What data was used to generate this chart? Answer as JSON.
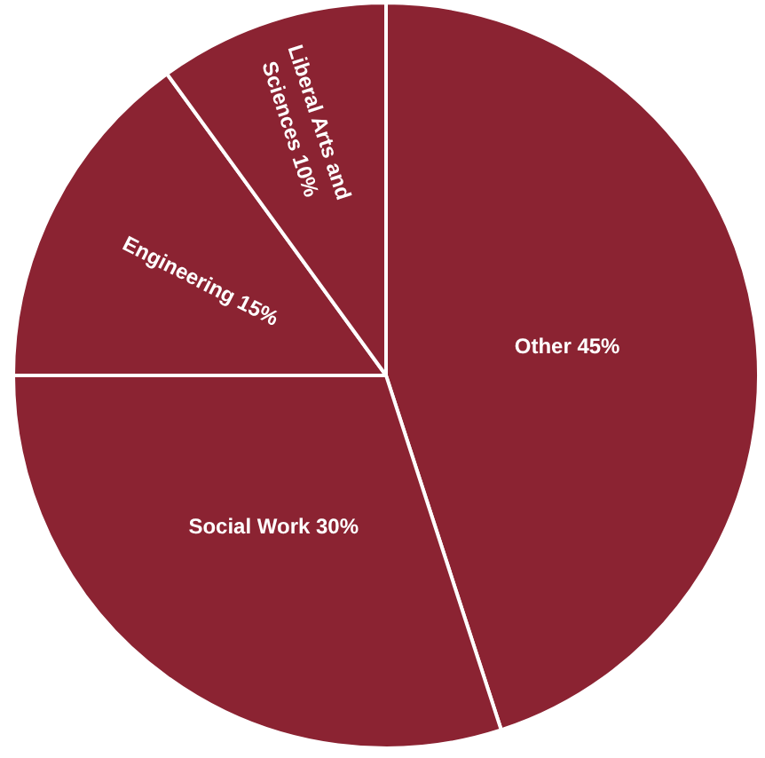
{
  "chart_data": {
    "type": "pie",
    "categories": [
      "Other",
      "Social Work",
      "Engineering",
      "Liberal Arts and Sciences"
    ],
    "values": [
      45,
      30,
      15,
      10
    ],
    "colors": [
      "#8b2332",
      "#8b2332",
      "#8b2332",
      "#8b2332"
    ],
    "value_labels": [
      "45%",
      "30%",
      "15%",
      "10%"
    ]
  }
}
